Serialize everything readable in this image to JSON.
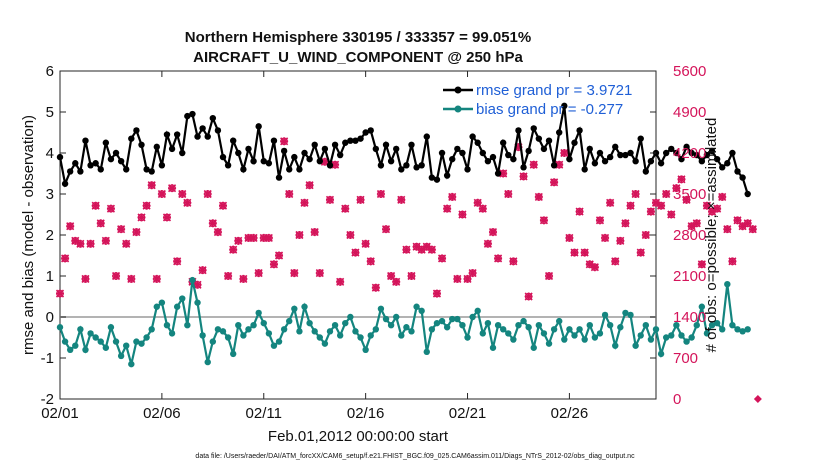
{
  "chart_data": {
    "type": "line",
    "title": "Northern Hemisphere 330195 / 333357 = 99.051%",
    "subtitle": "AIRCRAFT_U_WIND_COMPONENT @ 250 hPa",
    "xlabel": "Feb.01,2012 00:00:00 start",
    "ylabel": "rmse and bias (model - observation)",
    "ylabel_right": "# of obs: o=possible; ×=assimilated",
    "footnote": "data file: /Users/raeder/DAI/ATM_forcXX/CAM6_setup/f.e21.FHIST_BGC.f09_025.CAM6assim.011/Diags_NTrS_2012-02/obs_diag_output.nc",
    "x_ticks": [
      "02/01",
      "02/06",
      "02/11",
      "02/16",
      "02/21",
      "02/26"
    ],
    "x_tick_days": [
      1,
      6,
      11,
      16,
      21,
      26
    ],
    "xlim": [
      1,
      30.25
    ],
    "ylim": [
      -2,
      6
    ],
    "y_ticks": [
      "6",
      "5",
      "4",
      "3",
      "2",
      "1",
      "0",
      "-1",
      "-2"
    ],
    "ylim_right": [
      0,
      5600
    ],
    "y_ticks_right": [
      "5600",
      "4900",
      "4200",
      "3500",
      "2800",
      "2100",
      "1400",
      "700",
      "0"
    ],
    "grid": false,
    "legend_position": "top-right",
    "colors": {
      "rmse": "#000000",
      "bias": "#14857f",
      "obs": "#d4145a",
      "legend_text": "#1f5fd6",
      "zero_line": "#b3b3b3"
    },
    "series": [
      {
        "name": "rmse grand pr = 3.9721",
        "color": "#000000",
        "x_start_day": 1.0,
        "x_step_days": 0.25,
        "values": [
          3.9,
          3.25,
          3.55,
          3.75,
          3.55,
          4.3,
          3.7,
          3.75,
          3.6,
          4.25,
          3.85,
          4.0,
          3.8,
          3.6,
          4.35,
          4.55,
          4.2,
          3.6,
          3.55,
          4.15,
          3.7,
          4.45,
          4.1,
          4.45,
          4.0,
          4.9,
          4.95,
          4.4,
          4.6,
          4.4,
          4.85,
          4.55,
          3.9,
          3.7,
          4.3,
          4.0,
          3.6,
          4.1,
          3.8,
          4.65,
          3.8,
          3.75,
          4.3,
          3.4,
          4.05,
          3.6,
          3.9,
          3.6,
          4.0,
          3.85,
          4.2,
          3.8,
          4.1,
          3.7,
          4.2,
          3.95,
          4.25,
          4.3,
          4.3,
          4.35,
          4.5,
          4.55,
          4.1,
          3.7,
          4.2,
          3.8,
          4.1,
          3.6,
          3.7,
          4.2,
          3.65,
          3.7,
          4.4,
          3.4,
          3.35,
          4.0,
          3.45,
          3.85,
          4.1,
          4.0,
          3.6,
          4.4,
          4.25,
          4.0,
          3.8,
          3.9,
          3.5,
          4.25,
          3.95,
          3.85,
          4.55,
          3.65,
          4.05,
          4.6,
          4.35,
          4.1,
          4.3,
          3.7,
          4.5,
          5.15,
          3.85,
          4.25,
          4.55,
          3.6,
          4.1,
          3.75,
          4.0,
          3.8,
          3.9,
          4.15,
          3.95,
          3.95,
          4.0,
          3.8,
          4.35,
          3.55,
          3.8,
          4.0,
          3.75,
          4.0,
          4.1,
          4.0,
          3.85,
          4.15,
          4.0,
          3.95,
          3.8,
          3.95,
          4.05,
          3.85,
          3.65,
          3.75,
          4.0,
          3.55,
          3.4,
          3.0
        ]
      },
      {
        "name": "bias grand pr = -0.277",
        "color": "#14857f",
        "x_start_day": 1.0,
        "x_step_days": 0.25,
        "values": [
          -0.25,
          -0.6,
          -0.8,
          -0.7,
          -0.3,
          -0.8,
          -0.4,
          -0.5,
          -0.6,
          -0.75,
          -0.25,
          -0.6,
          -0.95,
          -0.7,
          -1.15,
          -0.6,
          -0.65,
          -0.5,
          -0.3,
          0.25,
          0.35,
          -0.2,
          -0.4,
          0.25,
          0.45,
          -0.2,
          0.9,
          0.35,
          -0.45,
          -1.1,
          -0.6,
          -0.3,
          -0.35,
          -0.5,
          -0.9,
          -0.2,
          -0.45,
          -0.3,
          -0.2,
          0.1,
          -0.15,
          -0.4,
          -0.7,
          -0.6,
          -0.3,
          -0.1,
          0.2,
          -0.35,
          0.25,
          -0.15,
          -0.35,
          -0.5,
          -0.65,
          -0.35,
          -0.2,
          -0.45,
          -0.15,
          0.0,
          -0.35,
          -0.5,
          -0.8,
          -0.45,
          -0.3,
          0.2,
          -0.05,
          -0.2,
          0.0,
          -0.45,
          -0.25,
          -0.35,
          0.25,
          0.15,
          -0.85,
          -0.3,
          -0.15,
          -0.1,
          -0.25,
          -0.05,
          -0.05,
          -0.2,
          -0.5,
          0.0,
          0.15,
          -0.4,
          -0.15,
          -0.75,
          -0.2,
          -0.3,
          -0.4,
          -0.55,
          -0.2,
          -0.1,
          -0.25,
          -0.75,
          -0.2,
          -0.4,
          -0.65,
          -0.3,
          -0.1,
          -0.55,
          -0.3,
          -0.45,
          -0.3,
          -0.55,
          -0.2,
          -0.5,
          -0.4,
          0.05,
          -0.2,
          -0.7,
          -0.25,
          0.1,
          0.05,
          -0.7,
          -0.45,
          -0.2,
          -0.55,
          -0.3,
          -0.9,
          -0.5,
          -0.45,
          -0.2,
          -0.45,
          -0.6,
          -0.5,
          -0.2,
          0.25,
          -0.4,
          -0.2,
          -0.15,
          -0.3,
          0.8,
          -0.2,
          -0.3,
          -0.35,
          -0.3
        ]
      },
      {
        "name": "# of obs possible / assimilated",
        "axis": "right",
        "color": "#d4145a",
        "x_start_day": 1.0,
        "x_step_days": 0.25,
        "values": [
          1800,
          2400,
          2950,
          2700,
          2650,
          2050,
          2650,
          3300,
          3000,
          2700,
          3250,
          2100,
          2900,
          2650,
          2050,
          2850,
          3100,
          3300,
          3650,
          2050,
          3500,
          3100,
          3600,
          2350,
          3500,
          3350,
          2000,
          1950,
          2200,
          3500,
          3000,
          2850,
          3300,
          2100,
          2550,
          2700,
          2050,
          2750,
          2750,
          2150,
          2750,
          2750,
          2300,
          2450,
          4400,
          3500,
          2150,
          2800,
          3350,
          3650,
          2850,
          2150,
          4050,
          3400,
          4000,
          2000,
          3250,
          2800,
          2500,
          3400,
          2650,
          2350,
          1900,
          3500,
          2900,
          2100,
          2000,
          3400,
          2550,
          2100,
          2600,
          2550,
          2600,
          2550,
          1800,
          2400,
          3250,
          3450,
          2050,
          3150,
          2050,
          2150,
          3350,
          3250,
          2650,
          2850,
          2400,
          3850,
          3500,
          2350,
          4300,
          3800,
          1750,
          4000,
          3450,
          3050,
          2100,
          3700,
          4000,
          4200,
          2750,
          2500,
          3200,
          2500,
          2300,
          2250,
          3050,
          2750,
          3350,
          2350,
          2700,
          3000,
          3300,
          3500,
          2500,
          2800,
          3200,
          3350,
          3300,
          3500,
          3150,
          3600,
          3750,
          3400,
          2950,
          3000,
          2300,
          3300,
          3200,
          3250,
          3450,
          2900,
          2350,
          3050,
          2950,
          3000,
          2900
        ]
      }
    ],
    "last_obs_marker_value": 0
  }
}
